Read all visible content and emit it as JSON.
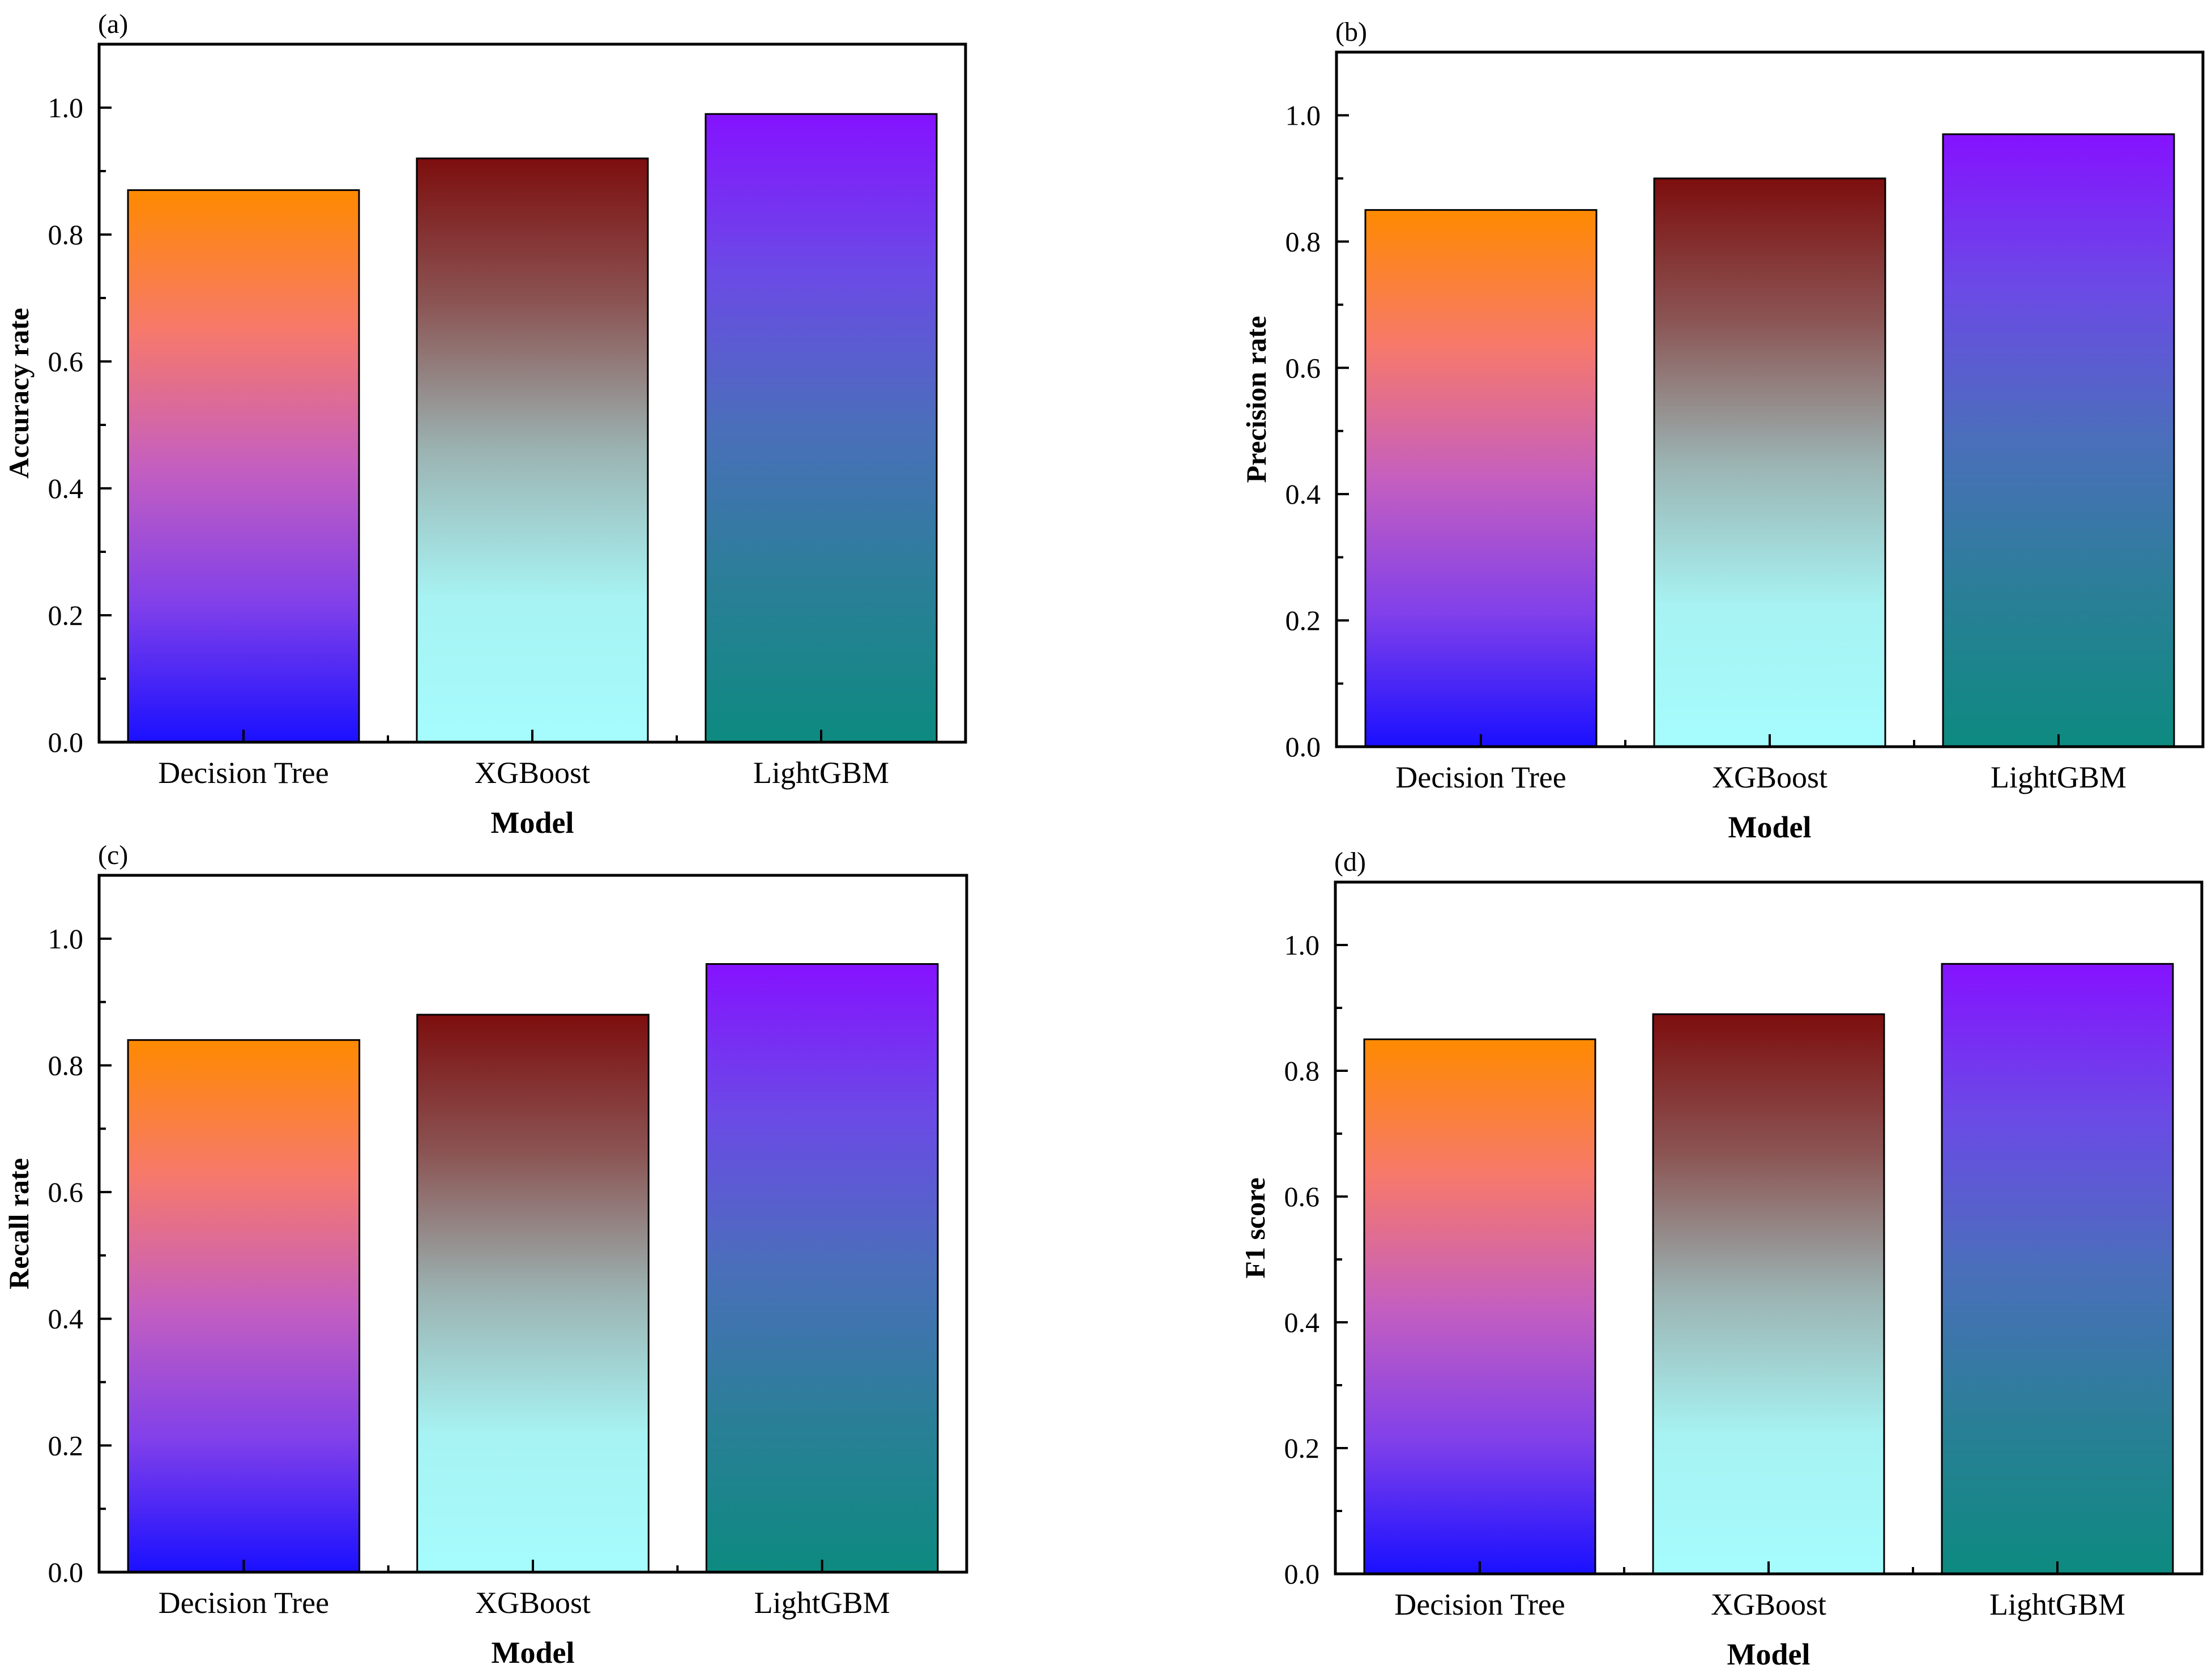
{
  "chart_data": [
    {
      "panel": "(a)",
      "type": "bar",
      "categories": [
        "Decision Tree",
        "XGBoost",
        "LightGBM"
      ],
      "values": [
        0.87,
        0.92,
        0.99
      ],
      "xlabel": "Model",
      "ylabel": "Accuracy rate",
      "ylim": [
        0,
        1.1
      ],
      "yticks": [
        "0.0",
        "0.2",
        "0.4",
        "0.6",
        "0.8",
        "1.0"
      ]
    },
    {
      "panel": "(b)",
      "type": "bar",
      "categories": [
        "Decision Tree",
        "XGBoost",
        "LightGBM"
      ],
      "values": [
        0.85,
        0.9,
        0.97
      ],
      "xlabel": "Model",
      "ylabel": "Precision rate",
      "ylim": [
        0,
        1.1
      ],
      "yticks": [
        "0.0",
        "0.2",
        "0.4",
        "0.6",
        "0.8",
        "1.0"
      ]
    },
    {
      "panel": "(c)",
      "type": "bar",
      "categories": [
        "Decision Tree",
        "XGBoost",
        "LightGBM"
      ],
      "values": [
        0.84,
        0.88,
        0.96
      ],
      "xlabel": "Model",
      "ylabel": "Recall rate",
      "ylim": [
        0,
        1.1
      ],
      "yticks": [
        "0.0",
        "0.2",
        "0.4",
        "0.6",
        "0.8",
        "1.0"
      ]
    },
    {
      "panel": "(d)",
      "type": "bar",
      "categories": [
        "Decision Tree",
        "XGBoost",
        "LightGBM"
      ],
      "values": [
        0.85,
        0.89,
        0.97
      ],
      "xlabel": "Model",
      "ylabel": "F1 score",
      "ylim": [
        0,
        1.1
      ],
      "yticks": [
        "0.0",
        "0.2",
        "0.4",
        "0.6",
        "0.8",
        "1.0"
      ]
    }
  ],
  "bar_gradients": [
    [
      "#ff8a00",
      "#f7796a",
      "#c55fbf",
      "#8140ea",
      "#1a10ff"
    ],
    [
      "#7d0e0e",
      "#8b5554",
      "#9bb3b2",
      "#a7f2f2",
      "#a6fcfd"
    ],
    [
      "#8512ff",
      "#6b4ae6",
      "#4a6fba",
      "#2a7f97",
      "#0d8a80"
    ]
  ]
}
